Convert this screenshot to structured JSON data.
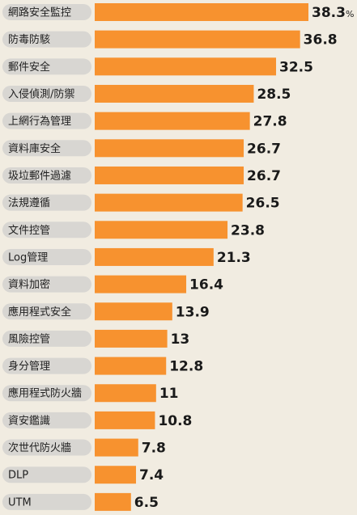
{
  "chart_data": {
    "type": "bar",
    "orientation": "horizontal",
    "categories": [
      "網路安全監控",
      "防毒防駭",
      "郵件安全",
      "入侵偵測/防禦",
      "上網行為管理",
      "資料庫安全",
      "圾垃郵件過濾",
      "法規遵循",
      "文件控管",
      "Log管理",
      "資料加密",
      "應用程式安全",
      "風險控管",
      "身分管理",
      "應用程式防火牆",
      "資安鑑識",
      "次世代防火牆",
      "DLP",
      "UTM"
    ],
    "values": [
      38.3,
      36.8,
      32.5,
      28.5,
      27.8,
      26.7,
      26.7,
      26.5,
      23.8,
      21.3,
      16.4,
      13.9,
      13,
      12.8,
      11,
      10.8,
      7.8,
      7.4,
      6.5
    ],
    "value_labels": [
      "38.3",
      "36.8",
      "32.5",
      "28.5",
      "27.8",
      "26.7",
      "26.7",
      "26.5",
      "23.8",
      "21.3",
      "16.4",
      "13.9",
      "13",
      "12.8",
      "11",
      "10.8",
      "7.8",
      "7.4",
      "6.5"
    ],
    "unit": "%",
    "bar_color": "#f7922f",
    "label_pill_color": "#d8d6d2",
    "background_color": "#f1ece1"
  }
}
